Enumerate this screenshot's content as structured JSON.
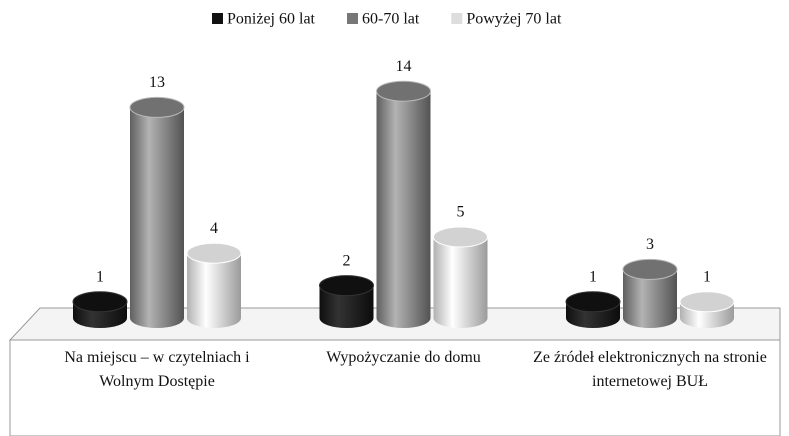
{
  "chart_data": {
    "type": "bar",
    "categories": [
      "Na miejscu – w czytelniach i Wolnym Dostępie",
      "Wypożyczanie do domu",
      "Ze źródeł elektronicznych na stronie internetowej BUŁ"
    ],
    "series": [
      {
        "name": "Poniżej 60 lat",
        "color": "#111111",
        "values": [
          1,
          2,
          1
        ]
      },
      {
        "name": "60-70 lat",
        "color": "#777777",
        "values": [
          13,
          14,
          3
        ]
      },
      {
        "name": "Powyżej 70 lat",
        "color": "#dddddd",
        "values": [
          4,
          5,
          1
        ]
      }
    ],
    "legend": "top"
  }
}
